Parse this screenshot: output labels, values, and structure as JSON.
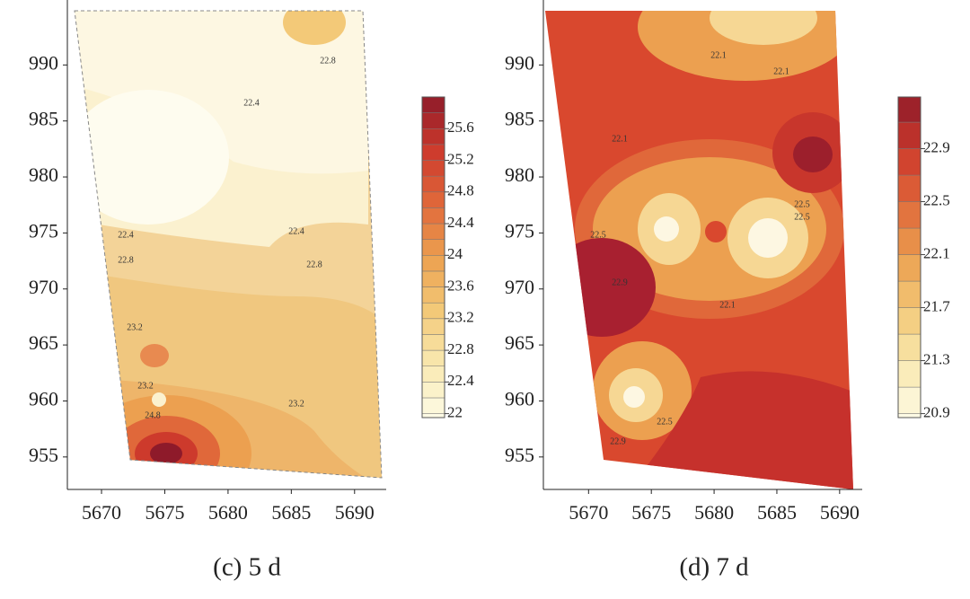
{
  "chart_data": [
    {
      "type": "contour",
      "caption": "(c) 5 d",
      "xlim": [
        5667.3,
        5692.5
      ],
      "xticks": [
        5670,
        5675,
        5680,
        5685,
        5690
      ],
      "ylim": [
        952.1,
        995.8
      ],
      "yticks": [
        955,
        960,
        965,
        970,
        975,
        980,
        985,
        990
      ],
      "colorbar": {
        "lim": [
          21.95,
          26.0
        ],
        "ticks": [
          22,
          22.4,
          22.8,
          23.2,
          23.6,
          24,
          24.4,
          24.8,
          25.2,
          25.6
        ]
      },
      "contour_labels": [
        22.8,
        22.4,
        22.4,
        22.4,
        22.8,
        22.8,
        23.2,
        23.2,
        23.2,
        24.8
      ]
    },
    {
      "type": "contour",
      "caption": "(d) 7 d",
      "xlim": [
        5666.4,
        5691.8
      ],
      "xticks": [
        5670,
        5675,
        5680,
        5685,
        5690
      ],
      "ylim": [
        952.1,
        995.8
      ],
      "yticks": [
        955,
        960,
        965,
        970,
        975,
        980,
        985,
        990
      ],
      "colorbar": {
        "lim": [
          20.87,
          23.29
        ],
        "ticks": [
          20.9,
          21.3,
          21.7,
          22.1,
          22.5,
          22.9
        ]
      },
      "contour_labels": [
        22.1,
        22.1,
        22.1,
        22.5,
        22.5,
        22.5,
        22.9,
        22.1,
        22.5,
        22.9
      ]
    }
  ]
}
